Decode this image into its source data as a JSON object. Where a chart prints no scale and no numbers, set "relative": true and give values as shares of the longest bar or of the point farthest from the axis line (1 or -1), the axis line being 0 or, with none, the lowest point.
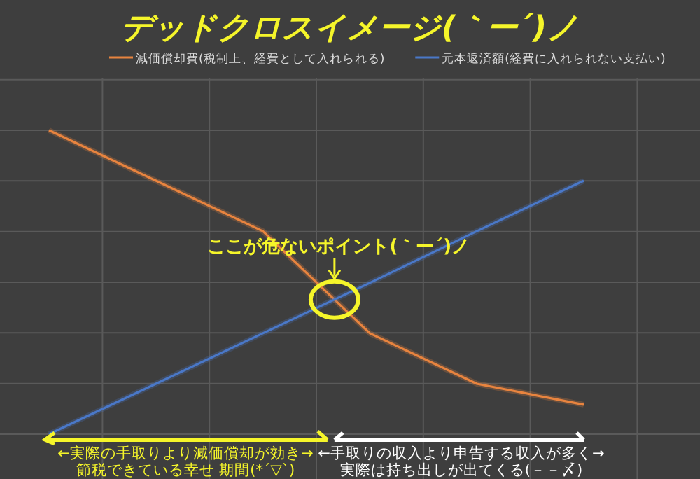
{
  "chart_data": {
    "type": "line",
    "title": "デッドクロスイメージ(｀ー´)ノ",
    "relative": true,
    "categories": [
      null,
      null,
      null,
      null,
      null,
      null
    ],
    "grid": true,
    "legend": "top",
    "series": [
      {
        "name": "減価償却費(税制上、経費として入れられる)",
        "color": "#e8843f",
        "values": [
          1,
          0.834,
          0.668,
          0.332,
          0.166,
          0.097
        ]
      },
      {
        "name": "元本返済額(経費に入れられない支払い)",
        "color": "#4a78c8",
        "values": [
          0,
          0.166,
          0.332,
          0.498,
          0.668,
          0.834
        ]
      }
    ],
    "annotations": [
      "ここが危ないポイント(｀ー´)ノ",
      "←実際の手取りより減価償却が効き→",
      "節税できている幸せ 期間(*´▽`)",
      "←手取りの収入より申告する収入が多く→",
      "実際は持ち出しが出てくる(－－〆)"
    ]
  }
}
